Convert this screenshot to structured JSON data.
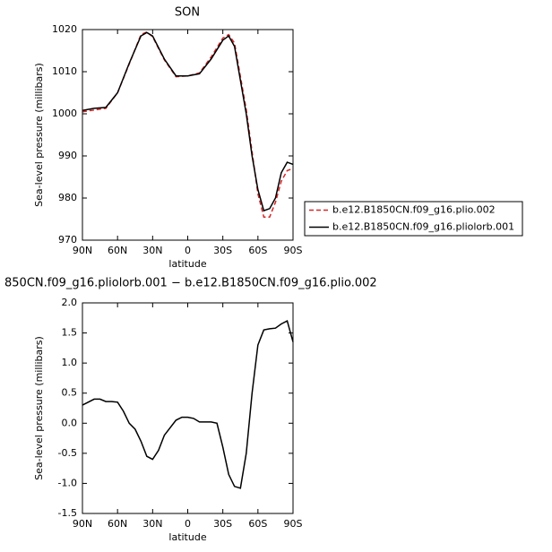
{
  "chart_data": [
    {
      "type": "line",
      "title": "SON",
      "x_label": "latitude",
      "y_label": "Sea-level pressure (millibars)",
      "x": [
        90,
        80,
        70,
        60,
        50,
        40,
        35,
        30,
        20,
        10,
        0,
        -10,
        -20,
        -30,
        -35,
        -40,
        -50,
        -55,
        -60,
        -65,
        -70,
        -75,
        -80,
        -85,
        -90
      ],
      "series": [
        {
          "name": "b.e12.B1850CN.f09_g16.plio.002",
          "color": "#d62728",
          "dash": true,
          "values": [
            1000.5,
            1000.9,
            1001.3,
            1005,
            1011.8,
            1018.8,
            1019.4,
            1018.3,
            1012.8,
            1008.8,
            1009,
            1009.7,
            1013.5,
            1018,
            1018.8,
            1016.8,
            1001,
            991,
            981,
            975.5,
            975.5,
            979,
            984,
            986.5,
            987
          ]
        },
        {
          "name": "b.e12.B1850CN.f09_g16.pliolorb.001",
          "color": "#000000",
          "dash": false,
          "values": [
            1000.8,
            1001.3,
            1001.5,
            1005,
            1012,
            1018.5,
            1019.3,
            1018.5,
            1013,
            1009,
            1009,
            1009.5,
            1013,
            1017.5,
            1018.5,
            1016,
            1000,
            990,
            982,
            977,
            977.5,
            980,
            986,
            988.5,
            988
          ]
        }
      ],
      "xlim": [
        90,
        -90
      ],
      "xticks": [
        {
          "value": 90,
          "label": "90N"
        },
        {
          "value": 60,
          "label": "60N"
        },
        {
          "value": 30,
          "label": "30N"
        },
        0,
        {
          "value": -30,
          "label": "30S"
        },
        {
          "value": -60,
          "label": "60S"
        },
        {
          "value": -90,
          "label": "90S"
        }
      ],
      "ylim": [
        970,
        1020
      ],
      "yticks": [
        970,
        980,
        990,
        1000,
        1010,
        1020
      ],
      "legend": "right-outside"
    },
    {
      "type": "line",
      "title": "850CN.f09_g16.pliolorb.001 − b.e12.B1850CN.f09_g16.plio.002",
      "x_label": "latitude",
      "y_label": "Sea-level pressure (millibars)",
      "x": [
        90,
        80,
        75,
        70,
        65,
        60,
        55,
        50,
        45,
        40,
        35,
        30,
        25,
        20,
        10,
        5,
        0,
        -5,
        -10,
        -15,
        -20,
        -25,
        -30,
        -35,
        -40,
        -45,
        -50,
        -55,
        -60,
        -65,
        -70,
        -75,
        -80,
        -85,
        -90
      ],
      "series": [
        {
          "color": "#000000",
          "dash": false,
          "values": [
            0.3,
            0.4,
            0.4,
            0.36,
            0.36,
            0.35,
            0.2,
            0.0,
            -0.1,
            -0.3,
            -0.55,
            -0.6,
            -0.45,
            -0.2,
            0.05,
            0.1,
            0.1,
            0.08,
            0.02,
            0.02,
            0.02,
            0.0,
            -0.4,
            -0.85,
            -1.05,
            -1.08,
            -0.5,
            0.5,
            1.3,
            1.55,
            1.57,
            1.58,
            1.65,
            1.7,
            1.35
          ]
        }
      ],
      "xlim": [
        90,
        -90
      ],
      "xticks": [
        {
          "value": 90,
          "label": "90N"
        },
        {
          "value": 60,
          "label": "60N"
        },
        {
          "value": 30,
          "label": "30N"
        },
        0,
        {
          "value": -30,
          "label": "30S"
        },
        {
          "value": -60,
          "label": "60S"
        },
        {
          "value": -90,
          "label": "90S"
        }
      ],
      "ylim": [
        -1.5,
        2.0
      ],
      "yticks": [
        {
          "value": 2.0,
          "label": "2.0"
        },
        1.5,
        {
          "value": 1.0,
          "label": "1.0"
        },
        0.5,
        {
          "value": 0.0,
          "label": "0.0"
        },
        -0.5,
        {
          "value": -1.0,
          "label": "-1.0"
        },
        -1.5
      ]
    }
  ]
}
